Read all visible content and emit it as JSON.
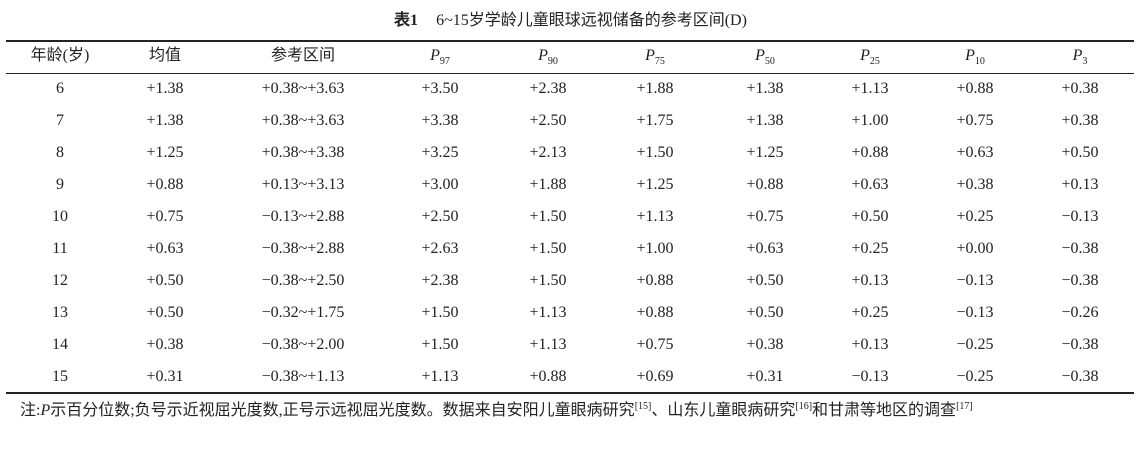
{
  "title": {
    "label": "表1",
    "text": "6~15岁学龄儿童眼球远视储备的参考区间(D)"
  },
  "table": {
    "headers": [
      {
        "main": "年龄(岁)"
      },
      {
        "main": "均值"
      },
      {
        "main": "参考区间"
      },
      {
        "main": "P",
        "sub": "97"
      },
      {
        "main": "P",
        "sub": "90"
      },
      {
        "main": "P",
        "sub": "75"
      },
      {
        "main": "P",
        "sub": "50"
      },
      {
        "main": "P",
        "sub": "25"
      },
      {
        "main": "P",
        "sub": "10"
      },
      {
        "main": "P",
        "sub": "3"
      }
    ],
    "rows": [
      [
        "6",
        "+1.38",
        "+0.38~+3.63",
        "+3.50",
        "+2.38",
        "+1.88",
        "+1.38",
        "+1.13",
        "+0.88",
        "+0.38"
      ],
      [
        "7",
        "+1.38",
        "+0.38~+3.63",
        "+3.38",
        "+2.50",
        "+1.75",
        "+1.38",
        "+1.00",
        "+0.75",
        "+0.38"
      ],
      [
        "8",
        "+1.25",
        "+0.38~+3.38",
        "+3.25",
        "+2.13",
        "+1.50",
        "+1.25",
        "+0.88",
        "+0.63",
        "+0.50"
      ],
      [
        "9",
        "+0.88",
        "+0.13~+3.13",
        "+3.00",
        "+1.88",
        "+1.25",
        "+0.88",
        "+0.63",
        "+0.38",
        "+0.13"
      ],
      [
        "10",
        "+0.75",
        "−0.13~+2.88",
        "+2.50",
        "+1.50",
        "+1.13",
        "+0.75",
        "+0.50",
        "+0.25",
        "−0.13"
      ],
      [
        "11",
        "+0.63",
        "−0.38~+2.88",
        "+2.63",
        "+1.50",
        "+1.00",
        "+0.63",
        "+0.25",
        "+0.00",
        "−0.38"
      ],
      [
        "12",
        "+0.50",
        "−0.38~+2.50",
        "+2.38",
        "+1.50",
        "+0.88",
        "+0.50",
        "+0.13",
        "−0.13",
        "−0.38"
      ],
      [
        "13",
        "+0.50",
        "−0.32~+1.75",
        "+1.50",
        "+1.13",
        "+0.88",
        "+0.50",
        "+0.25",
        "−0.13",
        "−0.26"
      ],
      [
        "14",
        "+0.38",
        "−0.38~+2.00",
        "+1.50",
        "+1.13",
        "+0.75",
        "+0.38",
        "+0.13",
        "−0.25",
        "−0.38"
      ],
      [
        "15",
        "+0.31",
        "−0.38~+1.13",
        "+1.13",
        "+0.88",
        "+0.69",
        "+0.31",
        "−0.13",
        "−0.25",
        "−0.38"
      ]
    ]
  },
  "note": {
    "segments": [
      {
        "text": "注:"
      },
      {
        "italic": "P"
      },
      {
        "text": "示百分位数;负号示近视屈光度数,正号示远视屈光度数。数据来自安阳儿童眼病研究"
      },
      {
        "sup": "[15]"
      },
      {
        "text": "、山东儿童眼病研究"
      },
      {
        "sup": "[16]"
      },
      {
        "text": "和甘肃等地区的调查"
      },
      {
        "sup": "[17]"
      }
    ]
  }
}
